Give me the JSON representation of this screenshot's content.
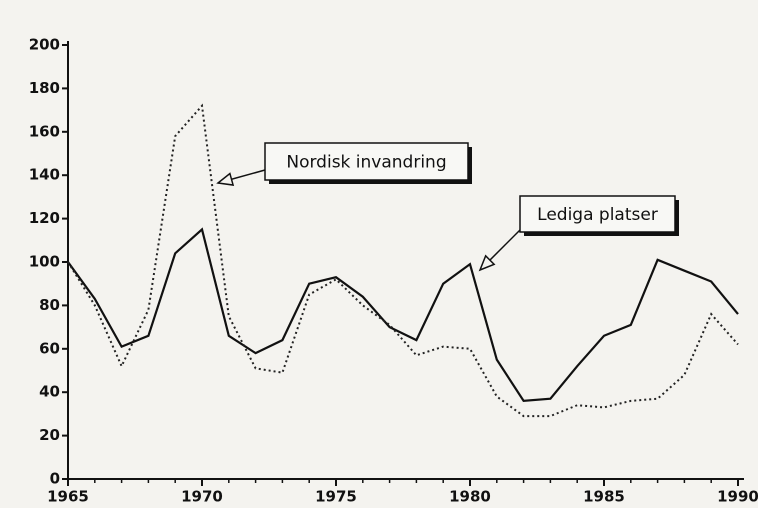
{
  "chart_data": {
    "type": "line",
    "x": [
      1965,
      1966,
      1967,
      1968,
      1969,
      1970,
      1971,
      1972,
      1973,
      1974,
      1975,
      1976,
      1977,
      1978,
      1979,
      1980,
      1981,
      1982,
      1983,
      1984,
      1985,
      1986,
      1987,
      1988,
      1989,
      1990
    ],
    "series": [
      {
        "name": "Lediga platser",
        "color": "#111111",
        "dash": "solid",
        "values": [
          100,
          83,
          61,
          66,
          104,
          115,
          66,
          58,
          64,
          90,
          93,
          84,
          70,
          64,
          90,
          99,
          55,
          36,
          37,
          52,
          66,
          71,
          101,
          96,
          91,
          76
        ]
      },
      {
        "name": "Nordisk invandring",
        "color": "#222222",
        "dash": "dotted",
        "values": [
          100,
          80,
          52,
          78,
          158,
          172,
          75,
          51,
          49,
          85,
          92,
          80,
          71,
          57,
          61,
          60,
          38,
          29,
          29,
          34,
          33,
          36,
          37,
          48,
          76,
          62
        ]
      }
    ],
    "xlim": [
      1965,
      1990
    ],
    "xticks": [
      1965,
      1970,
      1975,
      1980,
      1985,
      1990
    ],
    "ylim": [
      0,
      200
    ],
    "yticks": [
      0,
      20,
      40,
      60,
      80,
      100,
      120,
      140,
      160,
      180,
      200
    ],
    "grid": false
  }
}
